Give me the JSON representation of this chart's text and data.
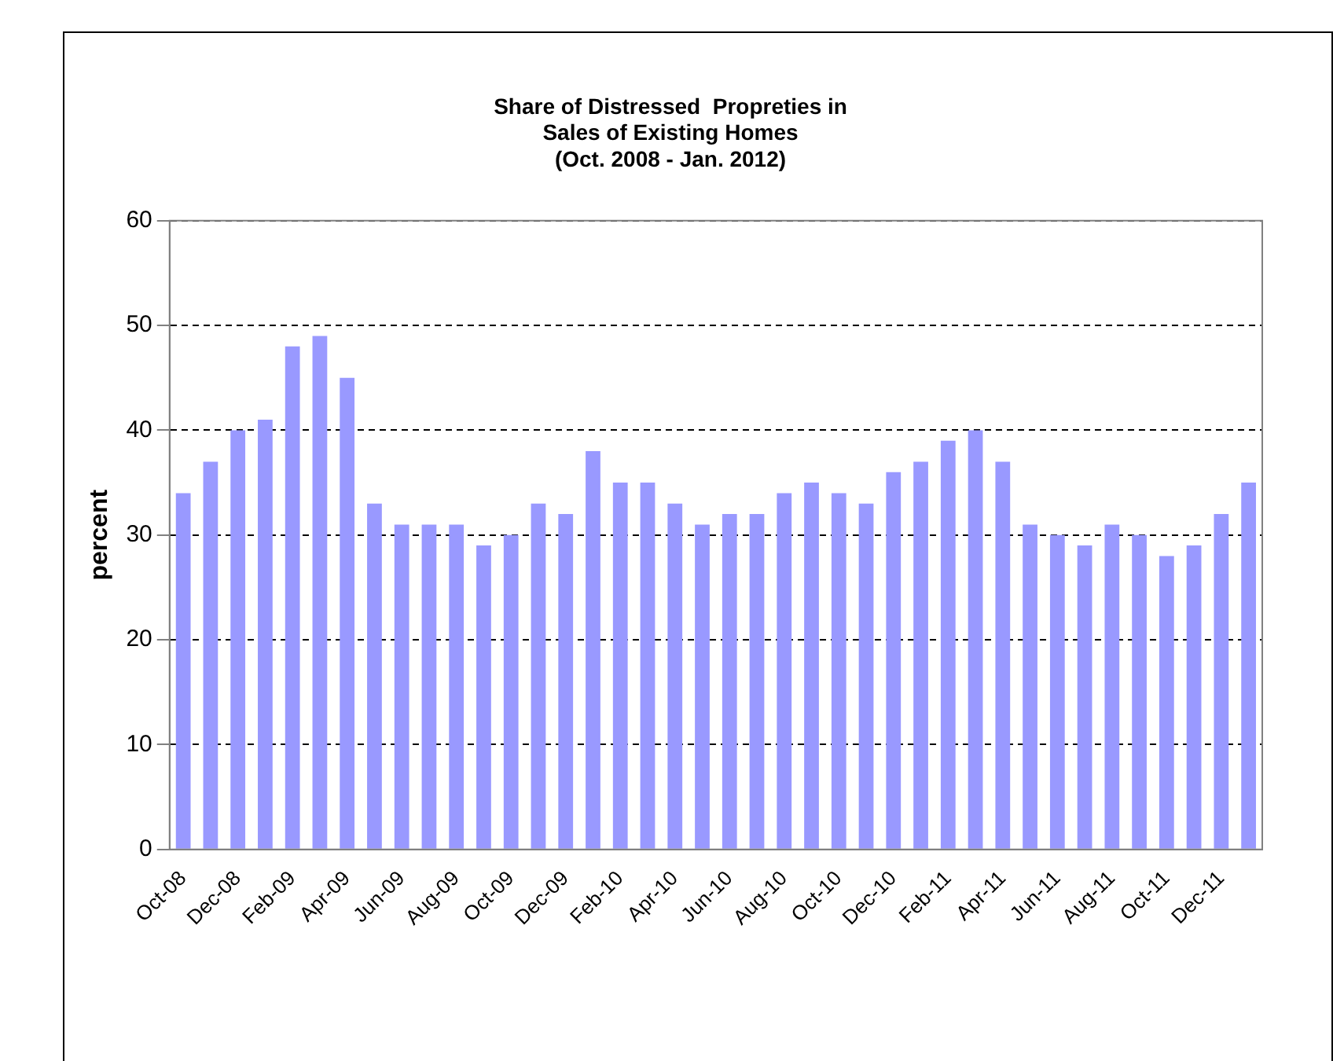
{
  "chart_data": {
    "type": "bar",
    "title": "Share of Distressed  Propreties in\nSales of Existing Homes\n(Oct. 2008 - Jan. 2012)",
    "ylabel": "percent",
    "categories": [
      "Oct-08",
      null,
      "Dec-08",
      null,
      "Feb-09",
      null,
      "Apr-09",
      null,
      "Jun-09",
      null,
      "Aug-09",
      null,
      "Oct-09",
      null,
      "Dec-09",
      null,
      "Feb-10",
      null,
      "Apr-10",
      null,
      "Jun-10",
      null,
      "Aug-10",
      null,
      "Oct-10",
      null,
      "Dec-10",
      null,
      "Feb-11",
      null,
      "Apr-11",
      null,
      "Jun-11",
      null,
      "Aug-11",
      null,
      "Oct-11",
      null,
      "Dec-11",
      null
    ],
    "values": [
      34,
      37,
      40,
      41,
      48,
      49,
      45,
      33,
      31,
      31,
      31,
      29,
      30,
      33,
      32,
      38,
      35,
      35,
      33,
      31,
      32,
      32,
      34,
      35,
      34,
      33,
      36,
      37,
      39,
      40,
      37,
      31,
      30,
      29,
      31,
      30,
      28,
      29,
      32,
      35
    ],
    "color": "#9999ff",
    "ylim": [
      0,
      60
    ],
    "yticks": [
      0,
      10,
      20,
      30,
      40,
      50,
      60
    ],
    "grid": "y",
    "legend": false
  }
}
